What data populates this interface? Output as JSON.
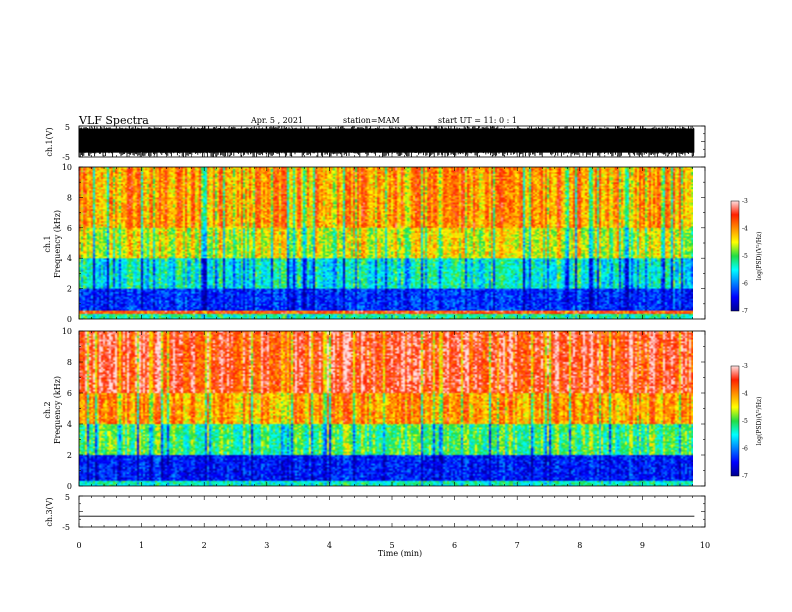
{
  "header": {
    "title": "VLF Spectra",
    "date": "Apr. 5 , 2021",
    "station": "station=MAM",
    "start": "start UT = 11: 0 : 1"
  },
  "chart_data": [
    {
      "type": "line",
      "panel": "ch1-waveform",
      "ylabel": "ch.1(V)",
      "ylim": [
        -5,
        5
      ],
      "yticks": [
        "5",
        "-5"
      ],
      "xlim": [
        0,
        10
      ],
      "fill_color": "#000000"
    },
    {
      "type": "heatmap",
      "panel": "ch1-spectrogram",
      "ylabel_line1": "ch.1",
      "ylabel_line2": "Frequency (kHz)",
      "ylim": [
        0,
        10
      ],
      "yticks": [
        "0",
        "2",
        "4",
        "6",
        "8",
        "10"
      ],
      "xlim": [
        0,
        9.83
      ],
      "colorbar": {
        "label": "log(PSD)(V²/Hz)",
        "range": [
          -7,
          -3
        ],
        "ticks": [
          "-3",
          "-4",
          "-5",
          "-6",
          "-7"
        ]
      },
      "levels_by_freq_band": [
        {
          "freq_kHz": [
            0,
            0.3
          ],
          "level": -5.2
        },
        {
          "freq_kHz": [
            0.3,
            0.6
          ],
          "level": -3.6
        },
        {
          "freq_kHz": [
            0.6,
            2.0
          ],
          "level": -6.3
        },
        {
          "freq_kHz": [
            2.0,
            4.0
          ],
          "level": -5.4
        },
        {
          "freq_kHz": [
            4.0,
            6.0
          ],
          "level": -4.5
        },
        {
          "freq_kHz": [
            6.0,
            10.0
          ],
          "level": -4.0
        }
      ]
    },
    {
      "type": "heatmap",
      "panel": "ch2-spectrogram",
      "ylabel_line1": "ch.2",
      "ylabel_line2": "Frequency (kHz)",
      "ylim": [
        0,
        10
      ],
      "yticks": [
        "0",
        "2",
        "4",
        "6",
        "8",
        "10"
      ],
      "xlim": [
        0,
        9.83
      ],
      "colorbar": {
        "label": "log(PSD)(V²/Hz)",
        "range": [
          -7,
          -3
        ],
        "ticks": [
          "-3",
          "-4",
          "-5",
          "-6",
          "-7"
        ]
      },
      "levels_by_freq_band": [
        {
          "freq_kHz": [
            0,
            0.3
          ],
          "level": -5.3
        },
        {
          "freq_kHz": [
            0.3,
            2.0
          ],
          "level": -6.4
        },
        {
          "freq_kHz": [
            2.0,
            4.0
          ],
          "level": -5.0
        },
        {
          "freq_kHz": [
            4.0,
            6.0
          ],
          "level": -4.0
        },
        {
          "freq_kHz": [
            6.0,
            10.0
          ],
          "level": -3.4
        }
      ]
    },
    {
      "type": "line",
      "panel": "ch3-waveform",
      "ylabel": "ch.3(V)",
      "ylim": [
        -5,
        5
      ],
      "yticks": [
        "5",
        "-5"
      ],
      "xlim": [
        0,
        10
      ],
      "series": [
        {
          "x": [
            0,
            9.83
          ],
          "values": [
            -1.5,
            -1.5
          ]
        }
      ]
    }
  ],
  "xaxis": {
    "label": "Time (min)",
    "ticks": [
      "0",
      "1",
      "2",
      "3",
      "4",
      "5",
      "6",
      "7",
      "8",
      "9",
      "10"
    ]
  }
}
